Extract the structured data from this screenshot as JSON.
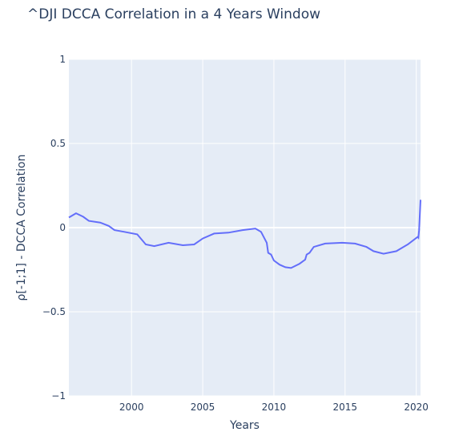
{
  "chart_data": {
    "type": "line",
    "title": "^DJI DCCA Correlation in a 4 Years Window",
    "xlabel": "Years",
    "ylabel": "ρ[-1;1] - DCCA Correlation",
    "xlim": [
      1995.6,
      2020.3
    ],
    "ylim": [
      -1,
      1
    ],
    "x_ticks": [
      "2000",
      "2005",
      "2010",
      "2015",
      "2020"
    ],
    "y_ticks": [
      "1",
      "0.5",
      "0",
      "−0.5",
      "−1"
    ],
    "grid": true,
    "legend": "none",
    "series": [
      {
        "color": "#636efa",
        "points": [
          [
            1995.6,
            0.06
          ],
          [
            1996.1,
            0.085
          ],
          [
            1996.6,
            0.065
          ],
          [
            1997.0,
            0.04
          ],
          [
            1997.8,
            0.03
          ],
          [
            1998.4,
            0.01
          ],
          [
            1998.8,
            -0.015
          ],
          [
            1999.5,
            -0.025
          ],
          [
            2000.4,
            -0.04
          ],
          [
            2001.0,
            -0.1
          ],
          [
            2001.6,
            -0.11
          ],
          [
            2002.6,
            -0.09
          ],
          [
            2003.6,
            -0.105
          ],
          [
            2004.4,
            -0.1
          ],
          [
            2005.0,
            -0.065
          ],
          [
            2005.8,
            -0.035
          ],
          [
            2006.8,
            -0.03
          ],
          [
            2007.8,
            -0.015
          ],
          [
            2008.7,
            -0.005
          ],
          [
            2009.1,
            -0.025
          ],
          [
            2009.5,
            -0.09
          ],
          [
            2009.6,
            -0.15
          ],
          [
            2009.8,
            -0.16
          ],
          [
            2010.0,
            -0.195
          ],
          [
            2010.4,
            -0.22
          ],
          [
            2010.8,
            -0.235
          ],
          [
            2011.2,
            -0.24
          ],
          [
            2011.8,
            -0.215
          ],
          [
            2012.2,
            -0.19
          ],
          [
            2012.3,
            -0.16
          ],
          [
            2012.5,
            -0.15
          ],
          [
            2012.8,
            -0.115
          ],
          [
            2013.6,
            -0.095
          ],
          [
            2014.8,
            -0.09
          ],
          [
            2015.7,
            -0.095
          ],
          [
            2016.5,
            -0.115
          ],
          [
            2017.0,
            -0.14
          ],
          [
            2017.7,
            -0.155
          ],
          [
            2018.6,
            -0.14
          ],
          [
            2019.4,
            -0.1
          ],
          [
            2020.1,
            -0.055
          ],
          [
            2020.15,
            -0.06
          ],
          [
            2020.2,
            -0.015
          ],
          [
            2020.3,
            0.165
          ]
        ]
      }
    ]
  }
}
